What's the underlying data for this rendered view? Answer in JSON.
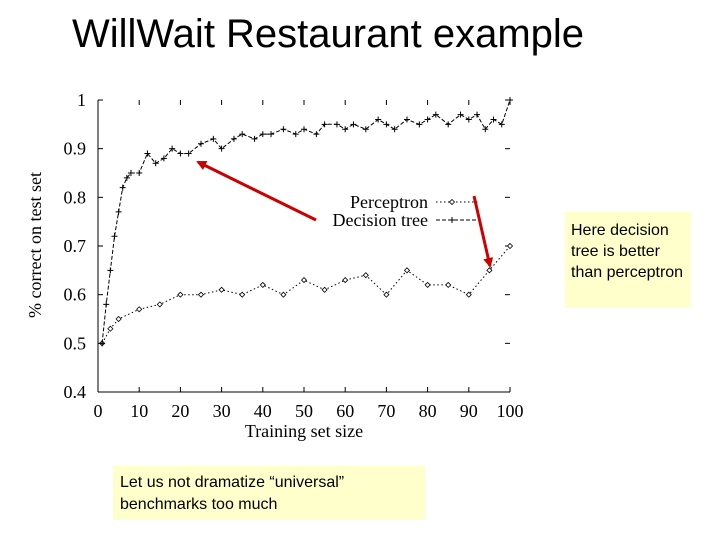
{
  "slide_title": "WillWait Restaurant example",
  "annotations": {
    "right_note": "Here decision tree is better than perceptron",
    "bottom_note": "Let us not dramatize “universal” benchmarks too much"
  },
  "colors": {
    "arrow": "#cc0000",
    "note_background": "#ffffcc"
  },
  "chart_data": {
    "type": "line",
    "xlabel": "Training set size",
    "ylabel": "% correct on test set",
    "xlim": [
      0,
      100
    ],
    "ylim": [
      0.4,
      1
    ],
    "x_ticks": [
      "0",
      "10",
      "20",
      "30",
      "40",
      "50",
      "60",
      "70",
      "80",
      "90",
      "100"
    ],
    "y_ticks": [
      "0.4",
      "0.5",
      "0.6",
      "0.7",
      "0.8",
      "0.9",
      "1"
    ],
    "legend_position": "top-right",
    "series": [
      {
        "name": "Perceptron",
        "line_style": "dotted",
        "marker": "diamond",
        "x": [
          1,
          3,
          5,
          10,
          15,
          20,
          25,
          30,
          35,
          40,
          45,
          50,
          55,
          60,
          65,
          70,
          75,
          80,
          85,
          90,
          95,
          100
        ],
        "y": [
          0.5,
          0.53,
          0.55,
          0.57,
          0.58,
          0.6,
          0.6,
          0.61,
          0.6,
          0.62,
          0.6,
          0.63,
          0.61,
          0.63,
          0.64,
          0.6,
          0.65,
          0.62,
          0.62,
          0.6,
          0.65,
          0.7
        ]
      },
      {
        "name": "Decision tree",
        "line_style": "dashed",
        "marker": "plus",
        "x": [
          1,
          2,
          3,
          4,
          5,
          6,
          7,
          8,
          10,
          12,
          14,
          16,
          18,
          20,
          22,
          25,
          28,
          30,
          33,
          35,
          38,
          40,
          42,
          45,
          48,
          50,
          53,
          55,
          58,
          60,
          62,
          65,
          68,
          70,
          72,
          75,
          78,
          80,
          82,
          85,
          88,
          90,
          92,
          94,
          96,
          98,
          100
        ],
        "y": [
          0.5,
          0.58,
          0.65,
          0.72,
          0.77,
          0.82,
          0.84,
          0.85,
          0.85,
          0.89,
          0.87,
          0.88,
          0.9,
          0.89,
          0.89,
          0.91,
          0.92,
          0.9,
          0.92,
          0.93,
          0.92,
          0.93,
          0.93,
          0.94,
          0.93,
          0.94,
          0.93,
          0.95,
          0.95,
          0.94,
          0.95,
          0.94,
          0.96,
          0.95,
          0.94,
          0.96,
          0.95,
          0.96,
          0.97,
          0.95,
          0.97,
          0.96,
          0.97,
          0.94,
          0.96,
          0.95,
          1.0
        ]
      }
    ]
  }
}
